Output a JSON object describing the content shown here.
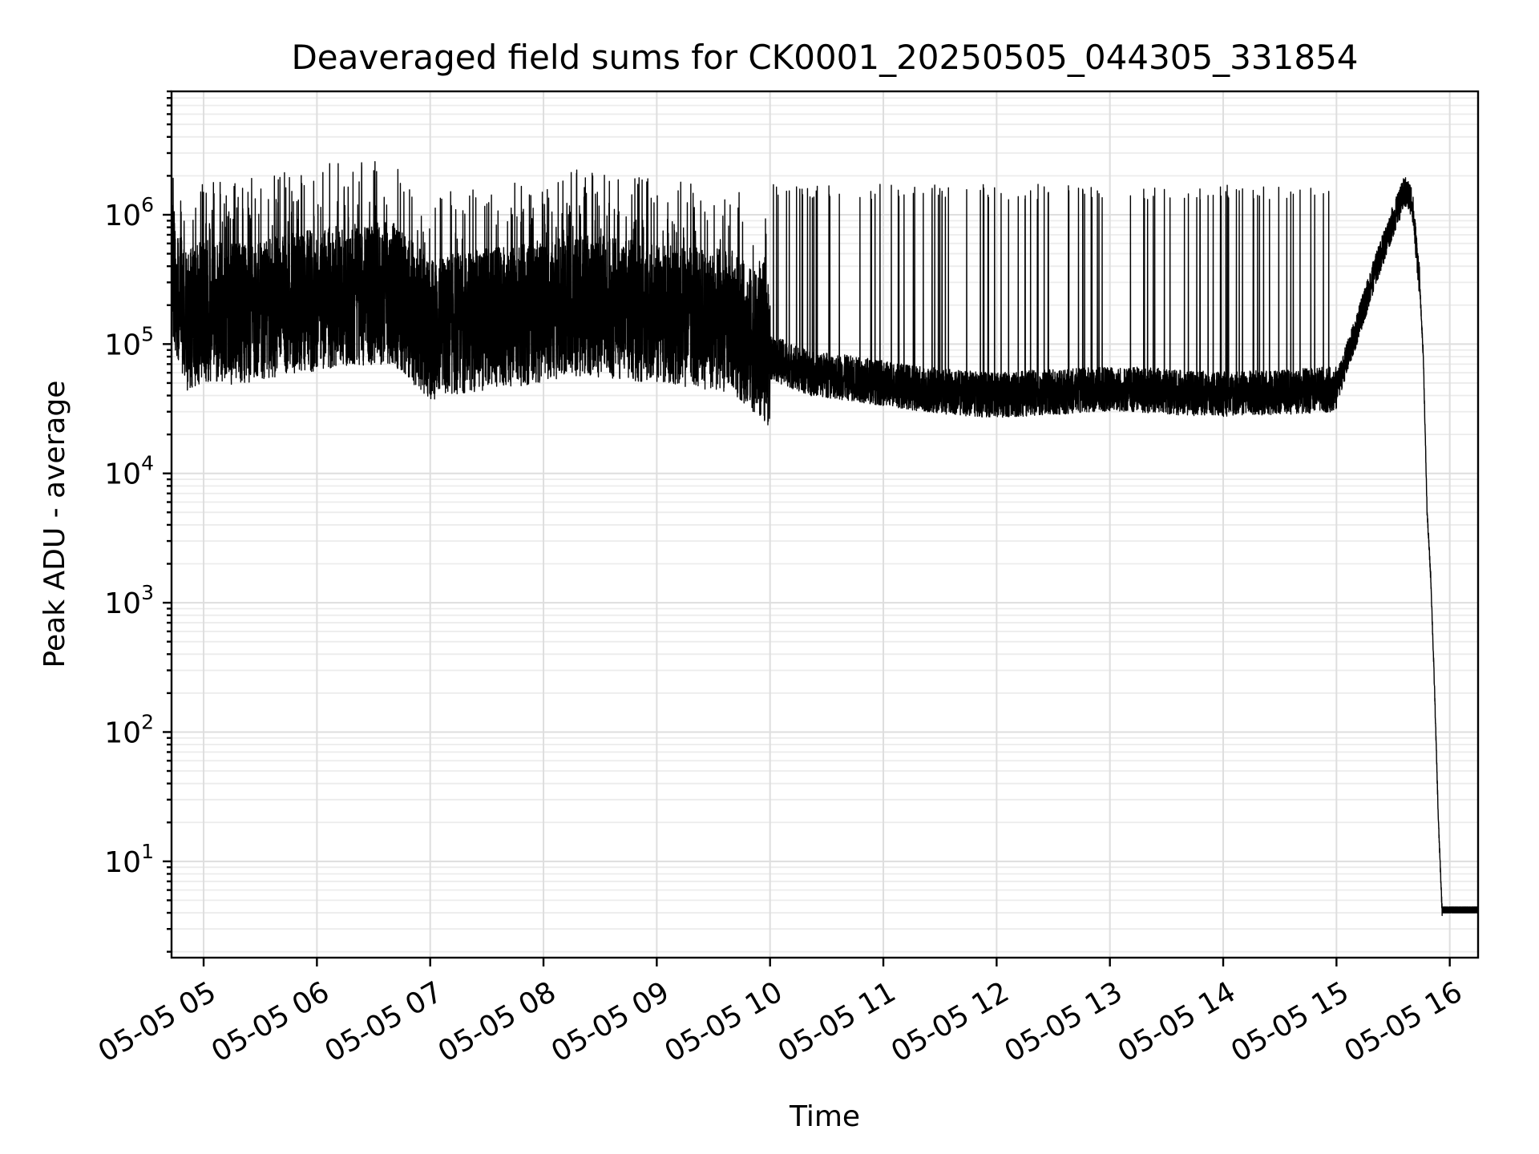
{
  "chart_data": {
    "type": "line",
    "title": "Deaveraged field sums for CK0001_20250505_044305_331854",
    "xlabel": "Time",
    "ylabel": "Peak ADU - average",
    "yscale": "log",
    "grid": true,
    "ylim": [
      1.8,
      9000000
    ],
    "xlim": [
      "2025-05-05 04:43",
      "2025-05-05 16:15"
    ],
    "x_ticks": [
      {
        "value": "2025-05-05 05:00",
        "label": "05-05 05"
      },
      {
        "value": "2025-05-05 06:00",
        "label": "05-05 06"
      },
      {
        "value": "2025-05-05 07:00",
        "label": "05-05 07"
      },
      {
        "value": "2025-05-05 08:00",
        "label": "05-05 08"
      },
      {
        "value": "2025-05-05 09:00",
        "label": "05-05 09"
      },
      {
        "value": "2025-05-05 10:00",
        "label": "05-05 10"
      },
      {
        "value": "2025-05-05 11:00",
        "label": "05-05 11"
      },
      {
        "value": "2025-05-05 12:00",
        "label": "05-05 12"
      },
      {
        "value": "2025-05-05 13:00",
        "label": "05-05 13"
      },
      {
        "value": "2025-05-05 14:00",
        "label": "05-05 14"
      },
      {
        "value": "2025-05-05 15:00",
        "label": "05-05 15"
      },
      {
        "value": "2025-05-05 16:00",
        "label": "05-05 16"
      }
    ],
    "y_ticks": [
      {
        "value": 10,
        "base": "10",
        "exp": "1"
      },
      {
        "value": 100,
        "base": "10",
        "exp": "2"
      },
      {
        "value": 1000,
        "base": "10",
        "exp": "3"
      },
      {
        "value": 10000,
        "base": "10",
        "exp": "4"
      },
      {
        "value": 100000,
        "base": "10",
        "exp": "5"
      },
      {
        "value": 1000000,
        "base": "10",
        "exp": "6"
      }
    ],
    "series": [
      {
        "color": "#000000",
        "x": [
          "2025-05-05 04:43",
          "2025-05-05 04:50",
          "2025-05-05 05:00",
          "2025-05-05 05:20",
          "2025-05-05 05:40",
          "2025-05-05 06:00",
          "2025-05-05 06:20",
          "2025-05-05 06:40",
          "2025-05-05 07:00",
          "2025-05-05 07:20",
          "2025-05-05 07:40",
          "2025-05-05 08:00",
          "2025-05-05 08:20",
          "2025-05-05 08:40",
          "2025-05-05 09:00",
          "2025-05-05 09:20",
          "2025-05-05 09:40",
          "2025-05-05 10:00",
          "2025-05-05 10:20",
          "2025-05-05 10:40",
          "2025-05-05 11:00",
          "2025-05-05 11:20",
          "2025-05-05 11:40",
          "2025-05-05 12:00",
          "2025-05-05 12:20",
          "2025-05-05 12:40",
          "2025-05-05 13:00",
          "2025-05-05 13:20",
          "2025-05-05 13:40",
          "2025-05-05 14:00",
          "2025-05-05 14:20",
          "2025-05-05 14:40",
          "2025-05-05 15:00",
          "2025-05-05 15:10",
          "2025-05-05 15:20",
          "2025-05-05 15:30",
          "2025-05-05 15:36",
          "2025-05-05 15:40",
          "2025-05-05 15:44",
          "2025-05-05 15:46",
          "2025-05-05 15:48",
          "2025-05-05 15:50",
          "2025-05-05 15:52",
          "2025-05-05 15:54",
          "2025-05-05 15:56",
          "2025-05-05 16:00",
          "2025-05-05 16:15"
        ],
        "y": [
          400000,
          150000,
          180000,
          170000,
          200000,
          220000,
          240000,
          250000,
          130000,
          150000,
          160000,
          180000,
          200000,
          190000,
          170000,
          160000,
          150000,
          80000,
          60000,
          55000,
          50000,
          45000,
          42000,
          40000,
          42000,
          43000,
          45000,
          44000,
          42000,
          41000,
          42000,
          43000,
          45000,
          120000,
          350000,
          900000,
          1500000,
          1300000,
          300000,
          80000,
          5000,
          1500,
          200,
          20,
          4,
          4,
          4
        ],
        "spike_floor": 30000,
        "spike_peak": 1500000
      }
    ]
  }
}
